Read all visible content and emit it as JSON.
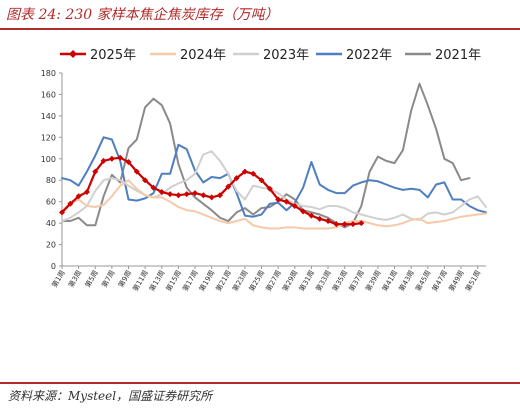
{
  "header": {
    "title": "图表 24:  230 家样本焦企焦炭库存（万吨）"
  },
  "footer": {
    "source": "资料来源：Mysteel，国盛证券研究所"
  },
  "chart_data": {
    "type": "line",
    "ylim": [
      0,
      180
    ],
    "yticks": [
      0,
      20,
      40,
      60,
      80,
      100,
      120,
      140,
      160,
      180
    ],
    "grid": false,
    "legend_position": "top",
    "x": [
      1,
      2,
      3,
      4,
      5,
      6,
      7,
      8,
      9,
      10,
      11,
      12,
      13,
      14,
      15,
      16,
      17,
      18,
      19,
      20,
      21,
      22,
      23,
      24,
      25,
      26,
      27,
      28,
      29,
      30,
      31,
      32,
      33,
      34,
      35,
      36,
      37,
      38,
      39,
      40,
      41,
      42,
      43,
      44,
      45,
      46,
      47,
      48,
      49,
      50,
      51,
      52
    ],
    "x_tick_labels": [
      "第1周",
      "第3周",
      "第5周",
      "第7周",
      "第9周",
      "第11周",
      "第13周",
      "第15周",
      "第17周",
      "第19周",
      "第21周",
      "第23周",
      "第25周",
      "第27周",
      "第29周",
      "第31周",
      "第33周",
      "第35周",
      "第37周",
      "第39周",
      "第41周",
      "第43周",
      "第45周",
      "第47周",
      "第49周",
      "第51周"
    ],
    "series": [
      {
        "name": "2025年",
        "color": "#cc0000",
        "markers": true,
        "values": [
          50,
          58,
          65,
          69,
          88,
          98,
          100,
          101,
          97,
          88,
          80,
          73,
          69,
          67,
          66,
          67,
          68,
          66,
          64,
          66,
          74,
          82,
          88,
          86,
          80,
          72,
          62,
          60,
          56,
          51,
          47,
          44,
          42,
          39,
          39,
          39,
          40,
          null,
          null,
          null,
          null,
          null,
          null,
          null,
          null,
          null,
          null,
          null,
          null,
          null,
          null,
          null
        ]
      },
      {
        "name": "2024年",
        "color": "#f6c9a8",
        "markers": false,
        "values": [
          52,
          58,
          62,
          56,
          55,
          57,
          65,
          75,
          80,
          72,
          66,
          64,
          64,
          60,
          55,
          52,
          51,
          48,
          45,
          42,
          40,
          42,
          44,
          38,
          36,
          35,
          35,
          36,
          36,
          35,
          35,
          35,
          35,
          36,
          40,
          42,
          42,
          40,
          38,
          37,
          38,
          40,
          43,
          44,
          40,
          41,
          42,
          44,
          46,
          47,
          48,
          49
        ]
      },
      {
        "name": "2023年",
        "color": "#d0d0d0",
        "markers": false,
        "values": [
          42,
          45,
          50,
          56,
          70,
          80,
          82,
          80,
          75,
          70,
          66,
          64,
          67,
          73,
          77,
          80,
          86,
          104,
          107,
          98,
          86,
          70,
          62,
          75,
          73,
          72,
          68,
          62,
          58,
          56,
          55,
          53,
          56,
          56,
          54,
          50,
          48,
          46,
          44,
          43,
          45,
          48,
          44,
          43,
          49,
          50,
          48,
          50,
          56,
          62,
          65,
          55
        ]
      },
      {
        "name": "2022年",
        "color": "#4f7fc0",
        "markers": false,
        "values": [
          82,
          80,
          75,
          88,
          103,
          120,
          118,
          98,
          62,
          61,
          63,
          68,
          86,
          86,
          113,
          109,
          89,
          78,
          83,
          82,
          86,
          68,
          47,
          46,
          48,
          58,
          59,
          52,
          59,
          73,
          97,
          76,
          71,
          68,
          68,
          75,
          78,
          80,
          79,
          76,
          73,
          71,
          72,
          71,
          64,
          76,
          78,
          62,
          62,
          56,
          52,
          50
        ]
      },
      {
        "name": "2021年",
        "color": "#8a8a8a",
        "markers": false,
        "values": [
          42,
          42,
          45,
          38,
          38,
          65,
          85,
          78,
          110,
          118,
          148,
          156,
          150,
          133,
          95,
          73,
          64,
          58,
          52,
          45,
          42,
          50,
          54,
          48,
          54,
          55,
          60,
          67,
          62,
          52,
          50,
          48,
          45,
          40,
          36,
          40,
          56,
          88,
          102,
          98,
          96,
          108,
          145,
          170,
          150,
          128,
          100,
          96,
          80,
          82,
          null,
          null
        ]
      }
    ]
  }
}
